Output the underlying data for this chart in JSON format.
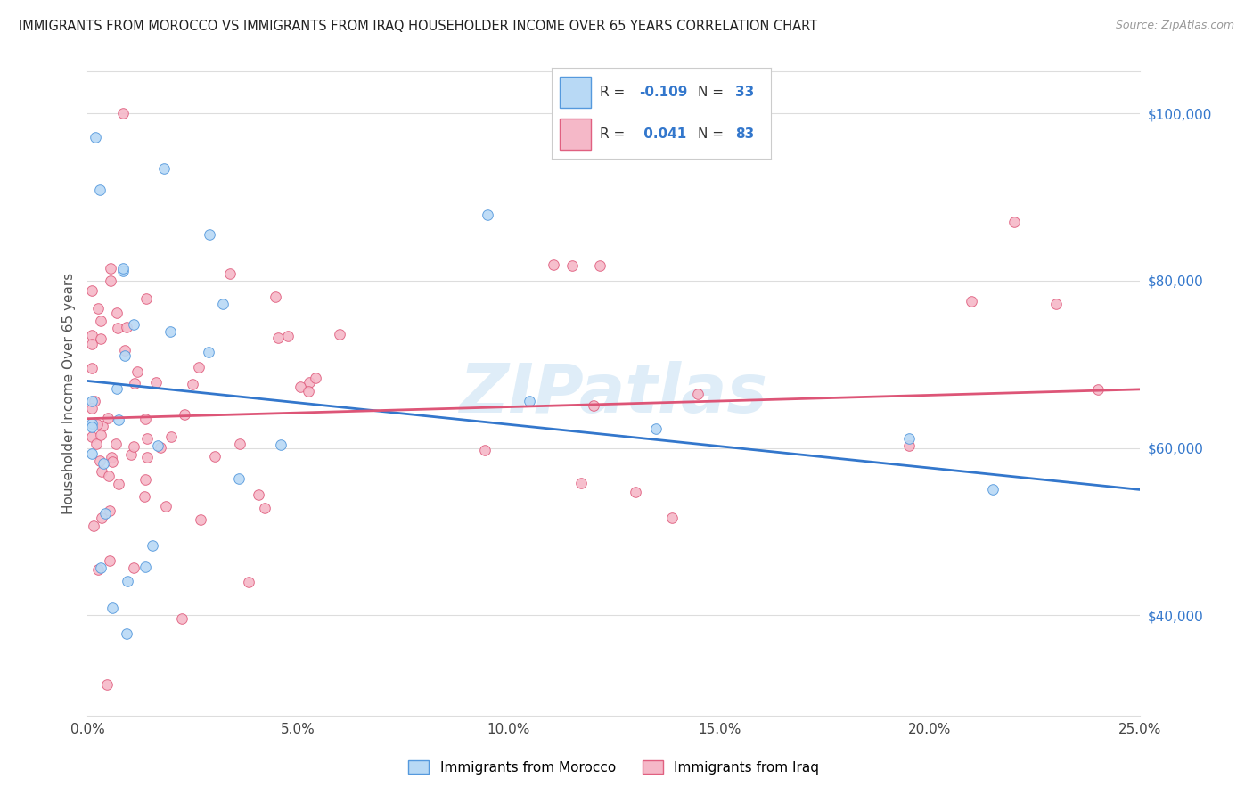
{
  "title": "IMMIGRANTS FROM MOROCCO VS IMMIGRANTS FROM IRAQ HOUSEHOLDER INCOME OVER 65 YEARS CORRELATION CHART",
  "source": "Source: ZipAtlas.com",
  "ylabel": "Householder Income Over 65 years",
  "xlim": [
    0.0,
    0.25
  ],
  "ylim": [
    28000,
    105000
  ],
  "xticks": [
    0.0,
    0.05,
    0.1,
    0.15,
    0.2,
    0.25
  ],
  "xtick_labels": [
    "0.0%",
    "5.0%",
    "10.0%",
    "15.0%",
    "20.0%",
    "25.0%"
  ],
  "yticks": [
    40000,
    60000,
    80000,
    100000
  ],
  "ytick_labels": [
    "$40,000",
    "$60,000",
    "$80,000",
    "$100,000"
  ],
  "morocco_color": "#b8d9f5",
  "morocco_edge": "#5599dd",
  "iraq_color": "#f5b8c8",
  "iraq_edge": "#e06080",
  "trend_morocco_color": "#3377cc",
  "trend_iraq_color": "#dd5577",
  "morocco_label": "Immigrants from Morocco",
  "iraq_label": "Immigrants from Iraq",
  "watermark": "ZIPatlas",
  "background_color": "#ffffff",
  "grid_color": "#dddddd",
  "morocco_R": -0.109,
  "morocco_N": 33,
  "iraq_R": 0.041,
  "iraq_N": 83,
  "trend_morocco_y0": 68000,
  "trend_morocco_y1": 55000,
  "trend_iraq_y0": 63500,
  "trend_iraq_y1": 67000
}
